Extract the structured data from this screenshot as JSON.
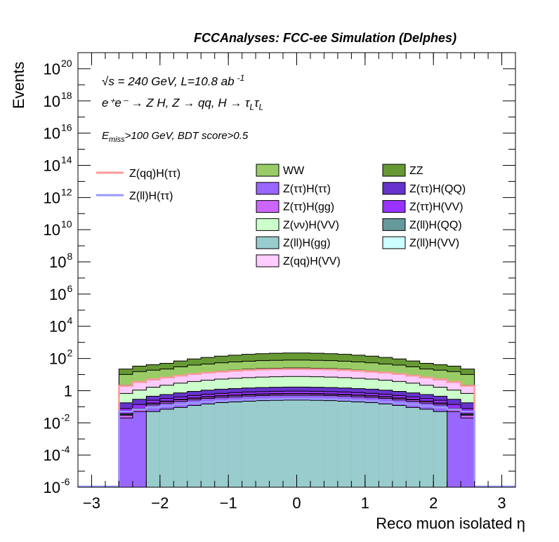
{
  "header": {
    "title": "FCCAnalyses: FCC-ee Simulation (Delphes)"
  },
  "annotations": {
    "energy_line": "√s = 240 GeV, L=10.8 ab",
    "energy_exp": "-1",
    "process_line": "e⁺e⁻ → Z H, Z → qq, H → τ",
    "process_sub1": "L",
    "process_tau2": "τ",
    "process_sub2": "L",
    "cut_prefix": "E",
    "cut_sub": "miss",
    "cut_suffix": ">100 GeV, BDT score>0.5"
  },
  "chart_data": {
    "type": "area",
    "xlabel": "Reco muon isolated η",
    "ylabel": "Events",
    "xlim": [
      -3.2,
      3.2
    ],
    "ylim": [
      1e-06,
      1e+21
    ],
    "yscale": "log",
    "xticks": [
      "−3",
      "−2",
      "−1",
      "0",
      "1",
      "2",
      "3"
    ],
    "yticks": [
      {
        "base": "10",
        "exp": "20",
        "value": 1e+20
      },
      {
        "base": "10",
        "exp": "18",
        "value": 1e+18
      },
      {
        "base": "10",
        "exp": "16",
        "value": 1e+16
      },
      {
        "base": "10",
        "exp": "14",
        "value": 100000000000000.0
      },
      {
        "base": "10",
        "exp": "12",
        "value": 1000000000000.0
      },
      {
        "base": "10",
        "exp": "10",
        "value": 10000000000.0
      },
      {
        "base": "10",
        "exp": "8",
        "value": 100000000.0
      },
      {
        "base": "10",
        "exp": "6",
        "value": 1000000.0
      },
      {
        "base": "10",
        "exp": "4",
        "value": 10000.0
      },
      {
        "base": "10",
        "exp": "2",
        "value": 100.0
      },
      {
        "base": "1",
        "exp": "",
        "value": 1
      },
      {
        "base": "10",
        "exp": "-2",
        "value": 0.01
      },
      {
        "base": "10",
        "exp": "-4",
        "value": 0.0001
      },
      {
        "base": "10",
        "exp": "-6",
        "value": 1e-06
      }
    ],
    "grid": false,
    "legend_position": "top",
    "bin_edges": [
      -2.6,
      -2.4,
      -2.2,
      -2.0,
      -1.8,
      -1.6,
      -1.4,
      -1.2,
      -1.0,
      -0.8,
      -0.6,
      -0.4,
      -0.2,
      0.0,
      0.2,
      0.4,
      0.6,
      0.8,
      1.0,
      1.2,
      1.4,
      1.6,
      1.8,
      2.0,
      2.2,
      2.4,
      2.6
    ],
    "stack_order": [
      "Z(ll)H(gg)",
      "Z(ττ)H(ττ)",
      "Z(ττ)H(gg)",
      "Z(ll)H(VV)",
      "Z(ll)H(QQ)",
      "Z(ττ)H(VV)",
      "Z(ττ)H(QQ)",
      "Z(νν)H(VV)",
      "Z(qq)H(VV)",
      "WW",
      "ZZ"
    ],
    "series": [
      {
        "name": "WW",
        "color": "#99cc66",
        "values": [
          8,
          12,
          14,
          16,
          22,
          28,
          32,
          38,
          42,
          46,
          50,
          52,
          54,
          54,
          52,
          50,
          46,
          42,
          38,
          32,
          28,
          22,
          16,
          14,
          12,
          8
        ]
      },
      {
        "name": "ZZ",
        "color": "#669933",
        "values": [
          12,
          18,
          22,
          28,
          40,
          55,
          70,
          85,
          100,
          115,
          125,
          135,
          140,
          140,
          135,
          125,
          115,
          100,
          85,
          70,
          55,
          40,
          28,
          22,
          18,
          12
        ]
      },
      {
        "name": "Z(ττ)H(ττ)",
        "color": "#9966ff",
        "values": [
          0.02,
          0.05,
          0.08,
          0.1,
          0.13,
          0.15,
          0.18,
          0.2,
          0.22,
          0.24,
          0.25,
          0.26,
          0.26,
          0.26,
          0.26,
          0.25,
          0.24,
          0.22,
          0.2,
          0.18,
          0.15,
          0.13,
          0.1,
          0.08,
          0.05,
          0.02
        ]
      },
      {
        "name": "Z(ττ)H(QQ)",
        "color": "#6633cc",
        "values": [
          0.1,
          0.15,
          0.2,
          0.25,
          0.32,
          0.4,
          0.48,
          0.55,
          0.6,
          0.65,
          0.7,
          0.72,
          0.74,
          0.74,
          0.72,
          0.7,
          0.65,
          0.6,
          0.55,
          0.48,
          0.4,
          0.32,
          0.25,
          0.2,
          0.15,
          0.1
        ]
      },
      {
        "name": "Z(ττ)H(gg)",
        "color": "#cc66ff",
        "values": [
          0.01,
          0.02,
          0.03,
          0.04,
          0.05,
          0.06,
          0.07,
          0.08,
          0.09,
          0.1,
          0.1,
          0.11,
          0.11,
          0.11,
          0.11,
          0.1,
          0.1,
          0.09,
          0.08,
          0.07,
          0.06,
          0.05,
          0.04,
          0.03,
          0.02,
          0.01
        ]
      },
      {
        "name": "Z(ττ)H(VV)",
        "color": "#9933ff",
        "values": [
          0.04,
          0.06,
          0.08,
          0.1,
          0.12,
          0.15,
          0.17,
          0.19,
          0.21,
          0.23,
          0.24,
          0.25,
          0.26,
          0.26,
          0.25,
          0.24,
          0.23,
          0.21,
          0.19,
          0.17,
          0.15,
          0.12,
          0.1,
          0.08,
          0.06,
          0.04
        ]
      },
      {
        "name": "Z(νν)H(VV)",
        "color": "#ccffcc",
        "values": [
          0.5,
          0.8,
          1.2,
          1.6,
          2.2,
          2.8,
          3.4,
          4,
          4.5,
          5,
          5.4,
          5.7,
          5.9,
          5.9,
          5.7,
          5.4,
          5,
          4.5,
          4,
          3.4,
          2.8,
          2.2,
          1.6,
          1.2,
          0.8,
          0.5
        ]
      },
      {
        "name": "Z(ll)H(QQ)",
        "color": "#669999",
        "values": [
          0.005,
          0.006,
          0.008,
          0.01,
          0.012,
          0.014,
          0.016,
          0.018,
          0.02,
          0.022,
          0.024,
          0.025,
          0.026,
          0.026,
          0.025,
          0.024,
          0.022,
          0.02,
          0.018,
          0.016,
          0.014,
          0.012,
          0.01,
          0.008,
          0.006,
          0.005
        ]
      },
      {
        "name": "Z(ll)H(gg)",
        "color": "#99cccc",
        "values": [
          1e-06,
          1e-06,
          0.05,
          0.07,
          0.09,
          0.12,
          0.15,
          0.18,
          0.2,
          0.22,
          0.24,
          0.25,
          0.26,
          0.26,
          0.25,
          0.24,
          0.22,
          0.2,
          0.18,
          0.15,
          0.12,
          0.09,
          0.07,
          0.05,
          1e-06,
          1e-06
        ]
      },
      {
        "name": "Z(ll)H(VV)",
        "color": "#ccffff",
        "values": [
          0.002,
          0.003,
          0.004,
          0.005,
          0.006,
          0.007,
          0.008,
          0.009,
          0.01,
          0.011,
          0.012,
          0.012,
          0.013,
          0.013,
          0.012,
          0.012,
          0.011,
          0.01,
          0.009,
          0.008,
          0.007,
          0.006,
          0.005,
          0.004,
          0.003,
          0.002
        ]
      },
      {
        "name": "Z(qq)H(VV)",
        "color": "#ffccff",
        "values": [
          1.5,
          2.2,
          3,
          4,
          5.5,
          7,
          9,
          11,
          13,
          15,
          16.5,
          17.5,
          18,
          18,
          17.5,
          16.5,
          15,
          13,
          11,
          9,
          7,
          5.5,
          4,
          3,
          2.2,
          1.5
        ]
      }
    ],
    "signals": [
      {
        "name": "Z(qq)H(ττ)",
        "color": "#ff9999",
        "values": [
          2,
          3.5,
          5,
          6.5,
          8.5,
          11,
          13,
          15,
          17,
          19,
          20.5,
          21.5,
          22,
          22,
          21.5,
          20.5,
          19,
          17,
          15,
          13,
          11,
          8.5,
          6.5,
          5,
          3.5,
          2
        ]
      },
      {
        "name": "Z(ll)H(ττ)",
        "color": "#9999ff",
        "values": [
          0.05,
          0.07,
          0.09,
          0.11,
          0.14,
          0.17,
          0.2,
          0.23,
          0.25,
          0.27,
          0.29,
          0.3,
          0.31,
          0.31,
          0.3,
          0.29,
          0.27,
          0.25,
          0.23,
          0.2,
          0.17,
          0.14,
          0.11,
          0.09,
          0.07,
          0.05
        ]
      }
    ],
    "legend_columns": [
      [
        "WW",
        "Z(ττ)H(ττ)",
        "Z(ττ)H(gg)",
        "Z(νν)H(VV)",
        "Z(ll)H(gg)",
        "Z(qq)H(VV)"
      ],
      [
        "ZZ",
        "Z(ττ)H(QQ)",
        "Z(ττ)H(VV)",
        "Z(ll)H(QQ)",
        "Z(ll)H(VV)"
      ]
    ]
  }
}
